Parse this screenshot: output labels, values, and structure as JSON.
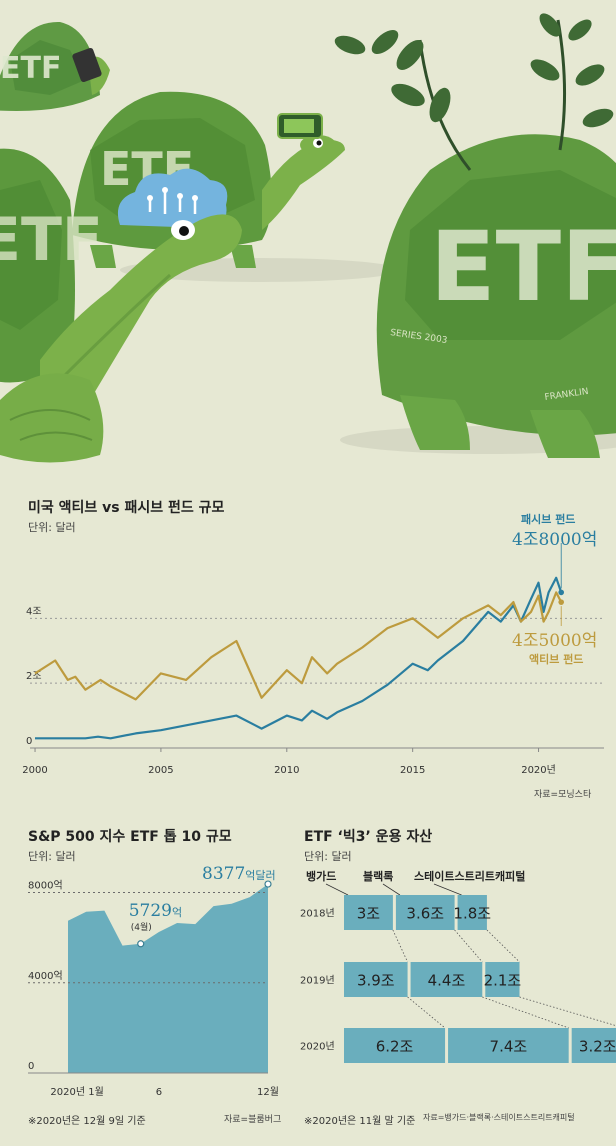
{
  "colors": {
    "background": "#e6e8d3",
    "passive": "#2a7ea0",
    "active": "#bd9b3e",
    "bar": "#6aaebd",
    "area": "#6aaebd",
    "shell": "#5e9a3e",
    "skin": "#7cb14a"
  },
  "illustration": {
    "shell_label": "ETF",
    "series_text": "SERIES 2003",
    "franklin_text": "FRANKLIN"
  },
  "chart_data": [
    {
      "type": "line",
      "title": "미국 액티브 vs 패시브 펀드 규모",
      "unit": "단위: 달러",
      "xlim": [
        1999.8,
        2022.6
      ],
      "ylim": [
        0,
        5.8
      ],
      "y_ticks": [
        {
          "value": 0,
          "label": "0"
        },
        {
          "value": 2,
          "label": "2조"
        },
        {
          "value": 4,
          "label": "4조"
        }
      ],
      "x_ticks": [
        {
          "value": 2000,
          "label": "2000"
        },
        {
          "value": 2005,
          "label": "2005"
        },
        {
          "value": 2010,
          "label": "2010"
        },
        {
          "value": 2015,
          "label": "2015"
        },
        {
          "value": 2020,
          "label": "2020년"
        }
      ],
      "series": [
        {
          "name": "패시브 펀드",
          "end_label": "4조8000억",
          "color": "#2a7ea0",
          "x": [
            2000,
            2001,
            2002,
            2002.5,
            2003,
            2004,
            2005,
            2006,
            2007,
            2008,
            2009,
            2010,
            2010.6,
            2011,
            2011.6,
            2012,
            2013,
            2014,
            2015,
            2015.6,
            2016,
            2017,
            2018,
            2018.5,
            2019,
            2019.3,
            2019.7,
            2020,
            2020.2,
            2020.4,
            2020.7,
            2020.9
          ],
          "values": [
            0.3,
            0.3,
            0.3,
            0.35,
            0.3,
            0.45,
            0.55,
            0.7,
            0.85,
            1.0,
            0.6,
            1.0,
            0.85,
            1.15,
            0.9,
            1.1,
            1.45,
            1.95,
            2.6,
            2.4,
            2.7,
            3.3,
            4.2,
            3.9,
            4.4,
            3.9,
            4.6,
            5.1,
            4.2,
            4.8,
            5.25,
            4.8
          ]
        },
        {
          "name": "액티브 펀드",
          "end_label": "4조5000억",
          "color": "#bd9b3e",
          "x": [
            2000,
            2000.8,
            2001.3,
            2001.6,
            2002,
            2002.6,
            2003,
            2004,
            2004.5,
            2005,
            2006,
            2007,
            2008,
            2009,
            2010,
            2010.6,
            2011,
            2011.6,
            2012,
            2013,
            2014,
            2015,
            2016,
            2017,
            2018,
            2018.5,
            2019,
            2019.3,
            2019.7,
            2020,
            2020.2,
            2020.4,
            2020.7,
            2020.9
          ],
          "values": [
            2.3,
            2.7,
            2.1,
            2.2,
            1.8,
            2.1,
            1.9,
            1.5,
            1.9,
            2.3,
            2.1,
            2.8,
            3.3,
            1.55,
            2.4,
            2.0,
            2.8,
            2.3,
            2.6,
            3.1,
            3.7,
            4.0,
            3.4,
            4.0,
            4.4,
            4.1,
            4.5,
            3.9,
            4.2,
            4.7,
            3.9,
            4.2,
            4.8,
            4.5
          ]
        }
      ],
      "source": "자료=모닝스타"
    },
    {
      "type": "area",
      "title": "S&P 500 지수 ETF 톱 10 규모",
      "unit": "단위: 달러",
      "x": [
        0,
        1,
        2,
        3,
        4,
        5,
        6,
        7,
        8,
        9,
        10,
        11
      ],
      "x_ticks": [
        {
          "value": 0.5,
          "label": "2020년 1월"
        },
        {
          "value": 5,
          "label": "6"
        },
        {
          "value": 11,
          "label": "12월"
        }
      ],
      "values": [
        6750,
        7150,
        7200,
        5650,
        5729,
        6250,
        6650,
        6600,
        7400,
        7500,
        7800,
        8377
      ],
      "ylim": [
        0,
        9000
      ],
      "y_ticks": [
        {
          "value": 0,
          "label": "0"
        },
        {
          "value": 4000,
          "label": "4000억"
        },
        {
          "value": 8000,
          "label": "8000억"
        }
      ],
      "annotations": [
        {
          "x": 4,
          "y": 5729,
          "value": "5729",
          "suffix": "억",
          "sub": "(4월)"
        },
        {
          "x": 11,
          "y": 8377,
          "value": "8377",
          "suffix": "억달러"
        }
      ],
      "note": "※2020년은 12월 9일 기준",
      "source": "자료=블룸버그"
    },
    {
      "type": "bar",
      "stacked": true,
      "orientation": "horizontal",
      "title": "ETF ‘빅3’ 운용 자산",
      "unit": "단위: 달러",
      "categories": [
        "2018년",
        "2019년",
        "2020년"
      ],
      "series": [
        {
          "name": "뱅가드",
          "values": [
            3,
            3.9,
            6.2
          ],
          "labels": [
            "3조",
            "3.9조",
            "6.2조"
          ]
        },
        {
          "name": "블랙록",
          "values": [
            3.6,
            4.4,
            7.4
          ],
          "labels": [
            "3.6조",
            "4.4조",
            "7.4조"
          ]
        },
        {
          "name": "스테이트스트리트캐피털",
          "values": [
            1.8,
            2.1,
            3.2
          ],
          "labels": [
            "1.8조",
            "2.1조",
            "3.2조"
          ]
        }
      ],
      "note": "※2020년은 11월 말 기준",
      "source": "자료=뱅가드·블랙록·스테이트스트리트캐피털"
    }
  ]
}
